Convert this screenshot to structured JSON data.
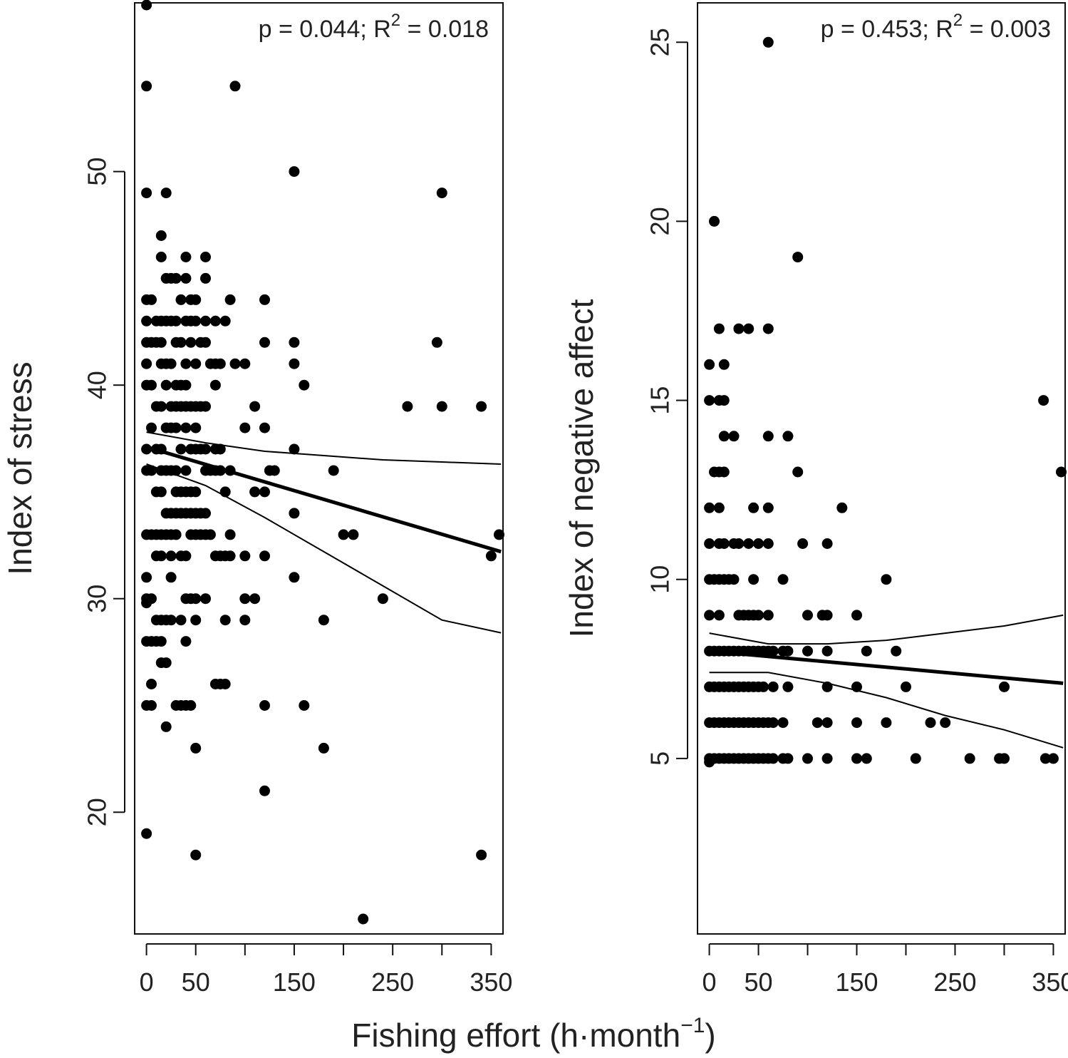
{
  "figure": {
    "shared_xlabel": "Fishing effort (h·month",
    "shared_xlabel_sup": "−1",
    "shared_xlabel_close": ")"
  },
  "chart_data": [
    {
      "type": "scatter",
      "id": "stress",
      "title": "",
      "xlabel": "Fishing effort (h·month−1)",
      "ylabel": "Index of stress",
      "annotation": {
        "prefix": "p = 0.044; R",
        "sup": "2",
        "suffix": " = 0.018"
      },
      "xlim": [
        -12,
        362
      ],
      "ylim": [
        14.3,
        57.9
      ],
      "xticks": [
        0,
        50,
        150,
        250,
        350
      ],
      "xminor": [
        100,
        200,
        300
      ],
      "yticks": [
        20,
        30,
        40,
        50
      ],
      "grid": false,
      "fit": {
        "x": [
          0,
          360
        ],
        "y": [
          37.1,
          32.2
        ]
      },
      "ci_upper": {
        "x": [
          0,
          60,
          120,
          180,
          240,
          300,
          360
        ],
        "y": [
          37.8,
          37.3,
          36.9,
          36.7,
          36.5,
          36.4,
          36.3
        ]
      },
      "ci_lower": {
        "x": [
          0,
          60,
          120,
          180,
          240,
          300,
          360
        ],
        "y": [
          36.3,
          35.3,
          33.8,
          32.2,
          30.6,
          29.0,
          28.4
        ]
      },
      "points": [
        [
          0,
          57.8
        ],
        [
          0,
          54
        ],
        [
          0,
          49
        ],
        [
          0,
          44
        ],
        [
          0,
          43
        ],
        [
          0,
          42
        ],
        [
          0,
          41
        ],
        [
          0,
          40
        ],
        [
          0,
          37
        ],
        [
          0,
          36
        ],
        [
          0,
          33
        ],
        [
          0,
          31
        ],
        [
          0,
          30
        ],
        [
          0,
          29.8
        ],
        [
          0,
          28
        ],
        [
          0,
          25
        ],
        [
          0,
          19
        ],
        [
          5,
          44
        ],
        [
          5,
          42
        ],
        [
          5,
          40
        ],
        [
          5,
          38
        ],
        [
          5,
          36
        ],
        [
          5,
          33
        ],
        [
          5,
          30
        ],
        [
          5,
          28
        ],
        [
          5,
          26
        ],
        [
          5,
          25
        ],
        [
          10,
          43
        ],
        [
          10,
          42
        ],
        [
          10,
          39
        ],
        [
          10,
          37
        ],
        [
          10,
          35
        ],
        [
          10,
          33
        ],
        [
          10,
          32
        ],
        [
          10,
          29
        ],
        [
          10,
          28
        ],
        [
          15,
          47
        ],
        [
          15,
          46
        ],
        [
          15,
          43
        ],
        [
          15,
          42
        ],
        [
          15,
          41
        ],
        [
          15,
          39
        ],
        [
          15,
          37
        ],
        [
          15,
          36
        ],
        [
          15,
          35
        ],
        [
          15,
          33
        ],
        [
          15,
          32
        ],
        [
          15,
          29
        ],
        [
          15,
          28
        ],
        [
          15,
          27
        ],
        [
          20,
          49
        ],
        [
          20,
          45
        ],
        [
          20,
          43
        ],
        [
          20,
          41
        ],
        [
          20,
          40
        ],
        [
          20,
          38
        ],
        [
          20,
          36
        ],
        [
          20,
          34
        ],
        [
          20,
          33
        ],
        [
          20,
          29
        ],
        [
          20,
          27
        ],
        [
          20,
          24
        ],
        [
          25,
          45
        ],
        [
          25,
          43
        ],
        [
          25,
          41
        ],
        [
          25,
          39
        ],
        [
          25,
          38
        ],
        [
          25,
          36
        ],
        [
          25,
          34
        ],
        [
          25,
          33
        ],
        [
          25,
          32
        ],
        [
          25,
          31
        ],
        [
          25,
          29
        ],
        [
          30,
          45
        ],
        [
          30,
          43
        ],
        [
          30,
          42
        ],
        [
          30,
          40
        ],
        [
          30,
          39
        ],
        [
          30,
          38
        ],
        [
          30,
          36
        ],
        [
          30,
          35
        ],
        [
          30,
          34
        ],
        [
          30,
          33
        ],
        [
          30,
          25
        ],
        [
          35,
          44
        ],
        [
          35,
          42
        ],
        [
          35,
          40
        ],
        [
          35,
          39
        ],
        [
          35,
          37
        ],
        [
          35,
          35
        ],
        [
          35,
          34
        ],
        [
          35,
          32
        ],
        [
          35,
          29
        ],
        [
          35,
          25
        ],
        [
          40,
          46
        ],
        [
          40,
          45
        ],
        [
          40,
          43
        ],
        [
          40,
          41
        ],
        [
          40,
          40
        ],
        [
          40,
          39
        ],
        [
          40,
          38
        ],
        [
          40,
          36
        ],
        [
          40,
          35
        ],
        [
          40,
          34
        ],
        [
          40,
          32
        ],
        [
          40,
          30
        ],
        [
          40,
          28
        ],
        [
          40,
          25
        ],
        [
          45,
          44
        ],
        [
          45,
          43
        ],
        [
          45,
          42
        ],
        [
          45,
          39
        ],
        [
          45,
          37
        ],
        [
          45,
          35
        ],
        [
          45,
          34
        ],
        [
          45,
          33
        ],
        [
          45,
          30
        ],
        [
          45,
          25
        ],
        [
          50,
          44
        ],
        [
          50,
          43
        ],
        [
          50,
          41
        ],
        [
          50,
          39
        ],
        [
          50,
          38
        ],
        [
          50,
          37
        ],
        [
          50,
          35
        ],
        [
          50,
          34
        ],
        [
          50,
          33
        ],
        [
          50,
          30
        ],
        [
          50,
          29
        ],
        [
          50,
          23
        ],
        [
          50,
          18
        ],
        [
          55,
          42
        ],
        [
          55,
          39
        ],
        [
          55,
          37
        ],
        [
          55,
          34
        ],
        [
          55,
          33
        ],
        [
          60,
          46
        ],
        [
          60,
          45
        ],
        [
          60,
          43
        ],
        [
          60,
          42
        ],
        [
          60,
          39
        ],
        [
          60,
          37
        ],
        [
          60,
          36
        ],
        [
          60,
          34
        ],
        [
          60,
          33
        ],
        [
          60,
          30
        ],
        [
          65,
          41
        ],
        [
          65,
          36
        ],
        [
          65,
          33
        ],
        [
          70,
          43
        ],
        [
          70,
          41
        ],
        [
          70,
          40
        ],
        [
          70,
          37
        ],
        [
          70,
          36
        ],
        [
          70,
          32
        ],
        [
          70,
          26
        ],
        [
          75,
          41
        ],
        [
          75,
          37
        ],
        [
          75,
          36
        ],
        [
          75,
          32
        ],
        [
          75,
          26
        ],
        [
          80,
          43
        ],
        [
          80,
          35
        ],
        [
          80,
          32
        ],
        [
          80,
          29
        ],
        [
          80,
          26
        ],
        [
          85,
          44
        ],
        [
          85,
          36
        ],
        [
          85,
          33
        ],
        [
          85,
          32
        ],
        [
          90,
          41
        ],
        [
          90,
          54
        ],
        [
          100,
          41
        ],
        [
          100,
          38
        ],
        [
          100,
          32
        ],
        [
          100,
          30
        ],
        [
          100,
          29
        ],
        [
          110,
          39
        ],
        [
          110,
          35
        ],
        [
          110,
          30
        ],
        [
          120,
          44
        ],
        [
          120,
          42
        ],
        [
          120,
          38
        ],
        [
          120,
          35
        ],
        [
          120,
          32
        ],
        [
          120,
          25
        ],
        [
          120,
          21
        ],
        [
          125,
          36
        ],
        [
          130,
          36
        ],
        [
          150,
          50
        ],
        [
          150,
          42
        ],
        [
          150,
          41
        ],
        [
          150,
          37
        ],
        [
          150,
          34
        ],
        [
          150,
          31
        ],
        [
          160,
          40
        ],
        [
          160,
          25
        ],
        [
          180,
          29
        ],
        [
          180,
          23
        ],
        [
          190,
          36
        ],
        [
          200,
          33
        ],
        [
          210,
          33
        ],
        [
          220,
          15
        ],
        [
          240,
          30
        ],
        [
          265,
          39
        ],
        [
          295,
          42
        ],
        [
          300,
          49
        ],
        [
          300,
          39
        ],
        [
          340,
          39
        ],
        [
          340,
          18
        ],
        [
          350,
          32
        ],
        [
          358,
          33
        ]
      ]
    },
    {
      "type": "scatter",
      "id": "negative-affect",
      "title": "",
      "xlabel": "Fishing effort (h·month−1)",
      "ylabel": "Index of negative affect",
      "annotation": {
        "prefix": "p = 0.453; R",
        "sup": "2",
        "suffix": " = 0.003"
      },
      "xlim": [
        -12,
        362
      ],
      "ylim": [
        0.1,
        26.1
      ],
      "xticks": [
        0,
        50,
        150,
        250,
        350
      ],
      "xminor": [
        100,
        200,
        300
      ],
      "yticks": [
        5,
        10,
        15,
        20,
        25
      ],
      "grid": false,
      "fit": {
        "x": [
          0,
          360
        ],
        "y": [
          8.0,
          7.1
        ]
      },
      "ci_upper": {
        "x": [
          0,
          60,
          120,
          180,
          240,
          300,
          360
        ],
        "y": [
          8.5,
          8.2,
          8.2,
          8.3,
          8.5,
          8.7,
          9.0
        ]
      },
      "ci_lower": {
        "x": [
          0,
          60,
          120,
          180,
          240,
          300,
          360
        ],
        "y": [
          7.4,
          7.4,
          7.1,
          6.7,
          6.2,
          5.8,
          5.3
        ]
      },
      "points": [
        [
          0,
          16
        ],
        [
          0,
          15
        ],
        [
          0,
          12
        ],
        [
          0,
          11
        ],
        [
          0,
          10
        ],
        [
          0,
          9
        ],
        [
          0,
          8
        ],
        [
          0,
          7
        ],
        [
          0,
          6
        ],
        [
          0,
          5
        ],
        [
          0,
          4.9
        ],
        [
          5,
          20
        ],
        [
          5,
          13
        ],
        [
          5,
          10
        ],
        [
          5,
          8
        ],
        [
          5,
          7
        ],
        [
          5,
          6
        ],
        [
          5,
          5
        ],
        [
          10,
          17
        ],
        [
          10,
          15
        ],
        [
          10,
          13
        ],
        [
          10,
          12
        ],
        [
          10,
          11
        ],
        [
          10,
          10
        ],
        [
          10,
          9
        ],
        [
          10,
          8
        ],
        [
          10,
          7
        ],
        [
          10,
          6
        ],
        [
          10,
          5
        ],
        [
          15,
          16
        ],
        [
          15,
          15
        ],
        [
          15,
          14
        ],
        [
          15,
          13
        ],
        [
          15,
          11
        ],
        [
          15,
          10
        ],
        [
          15,
          8
        ],
        [
          15,
          7
        ],
        [
          15,
          6
        ],
        [
          15,
          5
        ],
        [
          20,
          10
        ],
        [
          20,
          8
        ],
        [
          20,
          7
        ],
        [
          20,
          6
        ],
        [
          20,
          5
        ],
        [
          25,
          14
        ],
        [
          25,
          11
        ],
        [
          25,
          10
        ],
        [
          25,
          8
        ],
        [
          25,
          7
        ],
        [
          25,
          6
        ],
        [
          25,
          5
        ],
        [
          30,
          17
        ],
        [
          30,
          11
        ],
        [
          30,
          9
        ],
        [
          30,
          8
        ],
        [
          30,
          7
        ],
        [
          30,
          6
        ],
        [
          30,
          5
        ],
        [
          35,
          9
        ],
        [
          35,
          8
        ],
        [
          35,
          7
        ],
        [
          35,
          6
        ],
        [
          35,
          5
        ],
        [
          40,
          17
        ],
        [
          40,
          11
        ],
        [
          40,
          9
        ],
        [
          40,
          8
        ],
        [
          40,
          7
        ],
        [
          40,
          6
        ],
        [
          40,
          5
        ],
        [
          45,
          12
        ],
        [
          45,
          10
        ],
        [
          45,
          9
        ],
        [
          45,
          8
        ],
        [
          45,
          7
        ],
        [
          45,
          6
        ],
        [
          45,
          5
        ],
        [
          50,
          11
        ],
        [
          50,
          9
        ],
        [
          50,
          8
        ],
        [
          50,
          7
        ],
        [
          50,
          6
        ],
        [
          50,
          5
        ],
        [
          55,
          8
        ],
        [
          55,
          7
        ],
        [
          55,
          6
        ],
        [
          55,
          5
        ],
        [
          60,
          25
        ],
        [
          60,
          17
        ],
        [
          60,
          14
        ],
        [
          60,
          12
        ],
        [
          60,
          11
        ],
        [
          60,
          9
        ],
        [
          60,
          8
        ],
        [
          60,
          6
        ],
        [
          60,
          5
        ],
        [
          65,
          8
        ],
        [
          65,
          7
        ],
        [
          65,
          6
        ],
        [
          65,
          5
        ],
        [
          75,
          10
        ],
        [
          75,
          8
        ],
        [
          75,
          6
        ],
        [
          75,
          5
        ],
        [
          80,
          14
        ],
        [
          80,
          8
        ],
        [
          80,
          7
        ],
        [
          80,
          5
        ],
        [
          90,
          19
        ],
        [
          90,
          13
        ],
        [
          95,
          11
        ],
        [
          100,
          9
        ],
        [
          100,
          8
        ],
        [
          100,
          5
        ],
        [
          110,
          6
        ],
        [
          115,
          9
        ],
        [
          120,
          11
        ],
        [
          120,
          9
        ],
        [
          120,
          8
        ],
        [
          120,
          7
        ],
        [
          120,
          6
        ],
        [
          120,
          5
        ],
        [
          135,
          12
        ],
        [
          150,
          9
        ],
        [
          150,
          7
        ],
        [
          150,
          6
        ],
        [
          150,
          5
        ],
        [
          160,
          8
        ],
        [
          160,
          5
        ],
        [
          180,
          10
        ],
        [
          180,
          6
        ],
        [
          190,
          8
        ],
        [
          200,
          7
        ],
        [
          210,
          5
        ],
        [
          225,
          6
        ],
        [
          240,
          6
        ],
        [
          265,
          5
        ],
        [
          295,
          5
        ],
        [
          300,
          7
        ],
        [
          300,
          5
        ],
        [
          340,
          15
        ],
        [
          342,
          5
        ],
        [
          350,
          5
        ],
        [
          358,
          13
        ]
      ]
    }
  ]
}
